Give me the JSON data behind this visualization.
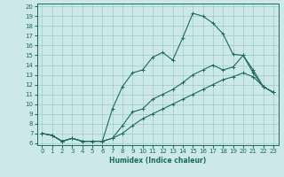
{
  "xlabel": "Humidex (Indice chaleur)",
  "bg_color": "#cce8e8",
  "grid_color": "#99cccc",
  "line_color": "#1a6b5a",
  "xlim": [
    -0.5,
    23.5
  ],
  "ylim": [
    5.8,
    20.3
  ],
  "xticks": [
    0,
    1,
    2,
    3,
    4,
    5,
    6,
    7,
    8,
    9,
    10,
    11,
    12,
    13,
    14,
    15,
    16,
    17,
    18,
    19,
    20,
    21,
    22,
    23
  ],
  "yticks": [
    6,
    7,
    8,
    9,
    10,
    11,
    12,
    13,
    14,
    15,
    16,
    17,
    18,
    19,
    20
  ],
  "series": [
    [
      7.0,
      6.8,
      6.2,
      6.5,
      6.2,
      6.2,
      6.2,
      9.5,
      11.8,
      13.2,
      13.5,
      14.8,
      15.3,
      14.5,
      16.8,
      19.3,
      19.0,
      18.3,
      17.2,
      15.1,
      15.0,
      13.2,
      11.8,
      11.2
    ],
    [
      7.0,
      6.8,
      6.2,
      6.5,
      6.2,
      6.2,
      6.2,
      6.5,
      7.8,
      9.2,
      9.5,
      10.5,
      11.0,
      11.5,
      12.2,
      13.0,
      13.5,
      14.0,
      13.5,
      13.8,
      15.0,
      13.5,
      11.8,
      11.2
    ],
    [
      7.0,
      6.8,
      6.2,
      6.5,
      6.2,
      6.2,
      6.2,
      6.5,
      7.0,
      7.8,
      8.5,
      9.0,
      9.5,
      10.0,
      10.5,
      11.0,
      11.5,
      12.0,
      12.5,
      12.8,
      13.2,
      12.8,
      11.8,
      11.2
    ]
  ]
}
